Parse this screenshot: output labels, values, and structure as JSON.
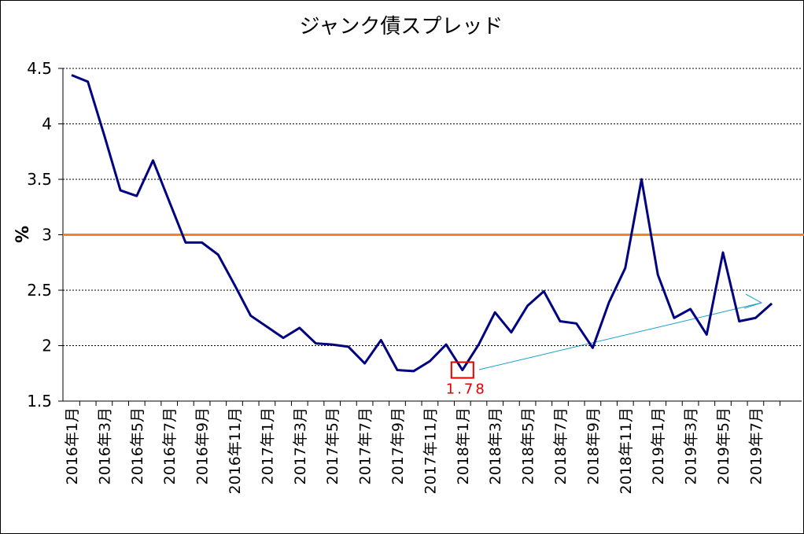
{
  "chart_data": {
    "type": "line",
    "title": "ジャンク債スプレッド",
    "y_label": "%",
    "categories": [
      "2016年1月",
      null,
      "2016年3月",
      null,
      "2016年5月",
      null,
      "2016年7月",
      null,
      "2016年9月",
      null,
      "2016年11月",
      null,
      "2017年1月",
      null,
      "2017年3月",
      null,
      "2017年5月",
      null,
      "2017年7月",
      null,
      "2017年9月",
      null,
      "2017年11月",
      null,
      "2018年1月",
      null,
      "2018年3月",
      null,
      "2018年5月",
      null,
      "2018年7月",
      null,
      "2018年9月",
      null,
      "2018年11月",
      null,
      "2019年1月",
      null,
      "2019年3月",
      null,
      "2019年5月",
      null,
      "2019年7月",
      null
    ],
    "values": [
      4.44,
      4.38,
      3.9,
      3.4,
      3.35,
      3.67,
      3.3,
      2.93,
      2.93,
      2.82,
      2.55,
      2.27,
      2.17,
      2.07,
      2.16,
      2.02,
      2.01,
      1.99,
      1.84,
      2.05,
      1.78,
      1.77,
      1.86,
      2.01,
      1.78,
      2.01,
      2.3,
      2.12,
      2.36,
      2.49,
      2.22,
      2.2,
      1.98,
      2.39,
      2.7,
      3.5,
      2.64,
      2.25,
      2.33,
      2.1,
      2.84,
      2.22,
      2.25,
      2.38
    ],
    "color": "#000080",
    "ylim": [
      1.5,
      4.5
    ],
    "yticks": [
      1.5,
      2,
      2.5,
      3,
      3.5,
      4,
      4.5
    ],
    "grid": true,
    "reference_line": {
      "value": 3,
      "color": "#ff8020"
    },
    "annotation": {
      "index": 24,
      "color": "#e00000"
    }
  }
}
